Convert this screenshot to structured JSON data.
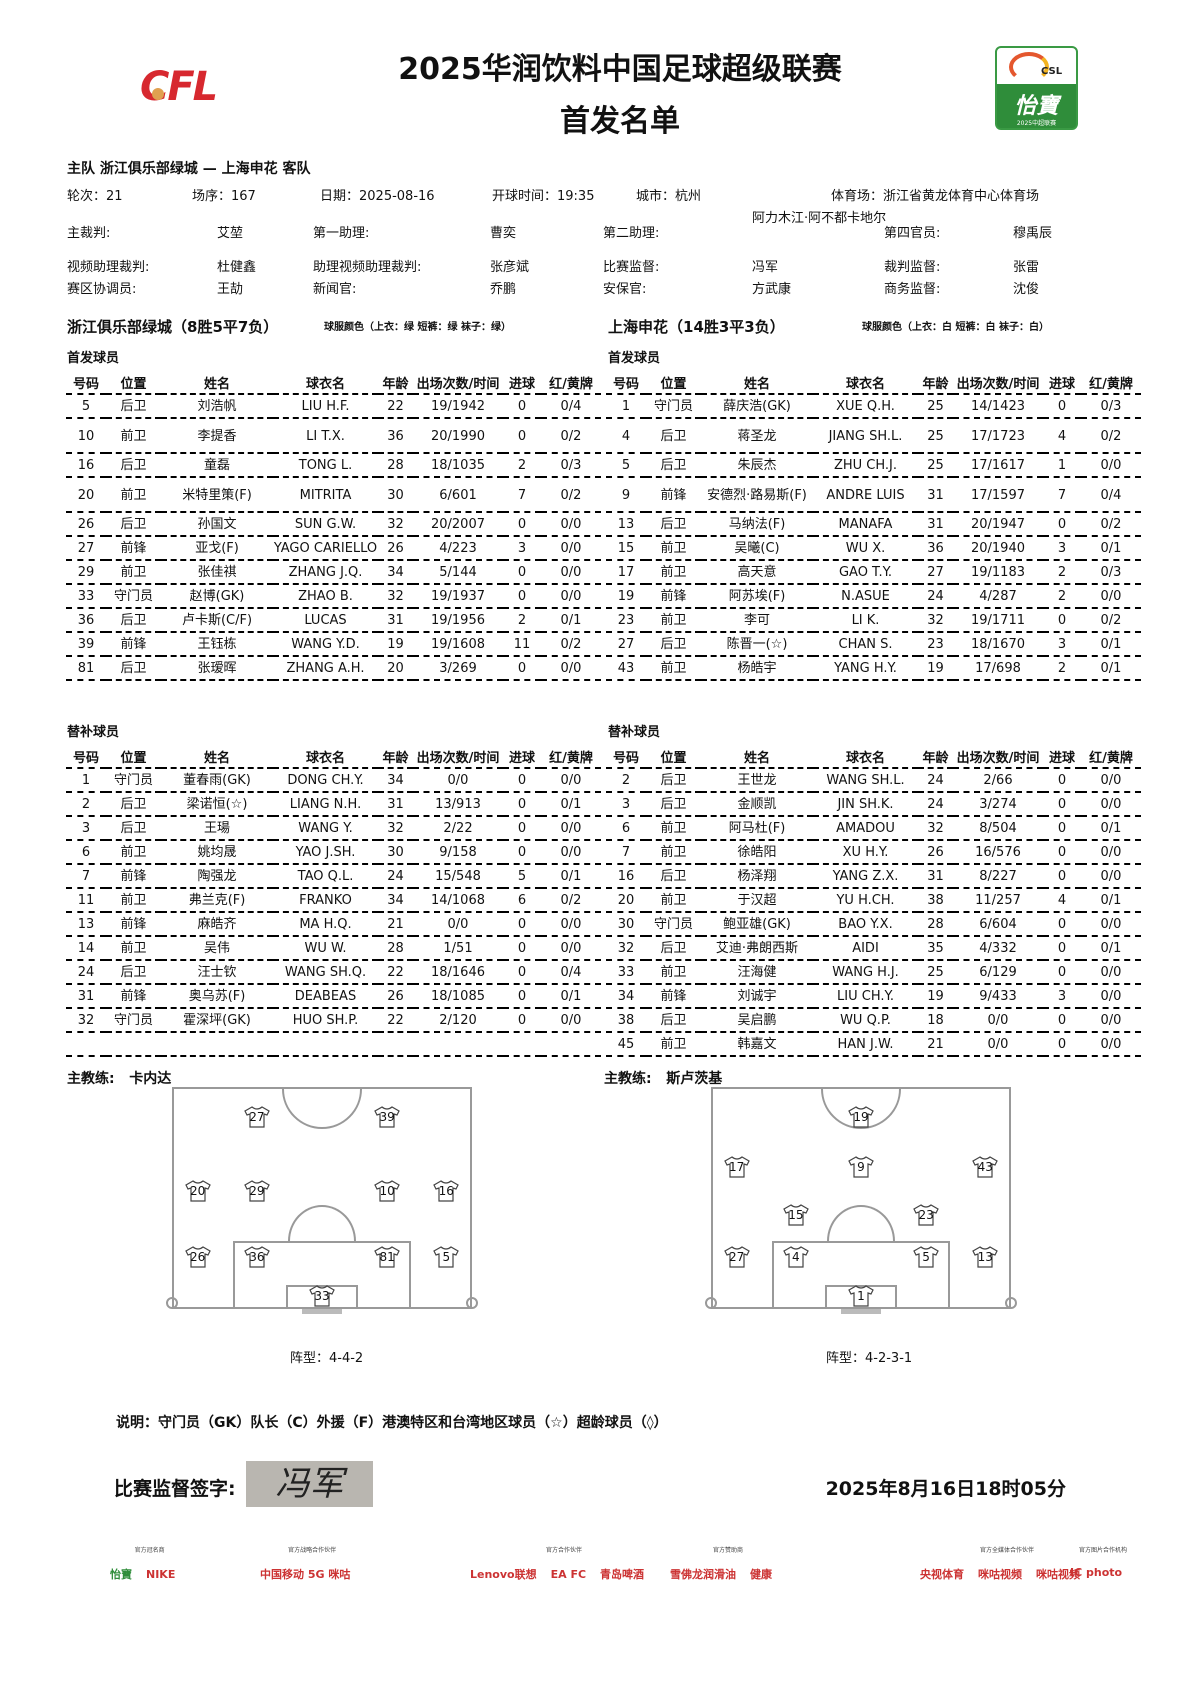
{
  "header": {
    "title": "2025华润饮料中国足球超级联赛",
    "subtitle": "首发名单",
    "left_logo_text": "CFL",
    "right_logo_text": "CSL",
    "right_logo_brand": "怡寶",
    "right_logo_year": "2025中超联赛"
  },
  "match": {
    "teams_line": "主队 浙江俱乐部绿城 — 上海申花 客队",
    "round": "轮次：21",
    "match_no": "场序：167",
    "date": "日期：2025-08-16",
    "kickoff": "开球时间：19:35",
    "city": "城市：杭州",
    "stadium": "体育场：浙江省黄龙体育中心体育场"
  },
  "officials": [
    [
      {
        "k": "主裁判:",
        "v": "艾堃"
      },
      {
        "k": "第一助理:",
        "v": "曹奕"
      },
      {
        "k": "第二助理:",
        "v": "阿力木江·阿不都卡地尔"
      },
      {
        "k": "第四官员:",
        "v": "穆禹辰"
      }
    ],
    [
      {
        "k": "视频助理裁判:",
        "v": "杜健鑫"
      },
      {
        "k": "助理视频助理裁判:",
        "v": "张彦斌"
      },
      {
        "k": "比赛监督:",
        "v": "冯军"
      },
      {
        "k": "裁判监督:",
        "v": "张雷"
      }
    ],
    [
      {
        "k": "赛区协调员:",
        "v": "王劼"
      },
      {
        "k": "新闻官:",
        "v": "乔鹏"
      },
      {
        "k": "安保官:",
        "v": "方武康"
      },
      {
        "k": "商务监督:",
        "v": "沈俊"
      }
    ]
  ],
  "columns": [
    "号码",
    "位置",
    "姓名",
    "球衣名",
    "年龄",
    "出场次数/时间",
    "进球",
    "红/黄牌"
  ],
  "home": {
    "name": "浙江俱乐部绿城（8胜5平7负）",
    "kit": "球服颜色（上衣：绿 短裤：绿 袜子：绿）",
    "starters_label": "首发球员",
    "subs_label": "替补球员",
    "starters": [
      [
        "5",
        "后卫",
        "刘浩帆",
        "LIU H.F.",
        "22",
        "19/1942",
        "0",
        "0/4"
      ],
      [
        "10",
        "前卫",
        "李提香",
        "LI T.X.",
        "36",
        "20/1990",
        "0",
        "0/2"
      ],
      [
        "16",
        "后卫",
        "童磊",
        "TONG L.",
        "28",
        "18/1035",
        "2",
        "0/3"
      ],
      [
        "20",
        "前卫",
        "米特里策(F)",
        "MITRITA",
        "30",
        "6/601",
        "7",
        "0/2"
      ],
      [
        "26",
        "后卫",
        "孙国文",
        "SUN G.W.",
        "32",
        "20/2007",
        "0",
        "0/0"
      ],
      [
        "27",
        "前锋",
        "亚戈(F)",
        "YAGO CARIELLO",
        "26",
        "4/223",
        "3",
        "0/0"
      ],
      [
        "29",
        "前卫",
        "张佳祺",
        "ZHANG J.Q.",
        "34",
        "5/144",
        "0",
        "0/0"
      ],
      [
        "33",
        "守门员",
        "赵博(GK)",
        "ZHAO B.",
        "32",
        "19/1937",
        "0",
        "0/0"
      ],
      [
        "36",
        "后卫",
        "卢卡斯(C/F)",
        "LUCAS",
        "31",
        "19/1956",
        "2",
        "0/1"
      ],
      [
        "39",
        "前锋",
        "王钰栋",
        "WANG Y.D.",
        "19",
        "19/1608",
        "11",
        "0/2"
      ],
      [
        "81",
        "后卫",
        "张瑷晖",
        "ZHANG A.H.",
        "20",
        "3/269",
        "0",
        "0/0"
      ]
    ],
    "subs": [
      [
        "1",
        "守门员",
        "董春雨(GK)",
        "DONG CH.Y.",
        "34",
        "0/0",
        "0",
        "0/0"
      ],
      [
        "2",
        "后卫",
        "梁诺恒(☆)",
        "LIANG N.H.",
        "31",
        "13/913",
        "0",
        "0/1"
      ],
      [
        "3",
        "后卫",
        "王瑒",
        "WANG Y.",
        "32",
        "2/22",
        "0",
        "0/0"
      ],
      [
        "6",
        "前卫",
        "姚均晟",
        "YAO J.SH.",
        "30",
        "9/158",
        "0",
        "0/0"
      ],
      [
        "7",
        "前锋",
        "陶强龙",
        "TAO Q.L.",
        "24",
        "15/548",
        "5",
        "0/1"
      ],
      [
        "11",
        "前卫",
        "弗兰克(F)",
        "FRANKO",
        "34",
        "14/1068",
        "6",
        "0/2"
      ],
      [
        "13",
        "前锋",
        "麻皓齐",
        "MA H.Q.",
        "21",
        "0/0",
        "0",
        "0/0"
      ],
      [
        "14",
        "前卫",
        "吴伟",
        "WU W.",
        "28",
        "1/51",
        "0",
        "0/0"
      ],
      [
        "24",
        "后卫",
        "汪士钦",
        "WANG SH.Q.",
        "22",
        "18/1646",
        "0",
        "0/4"
      ],
      [
        "31",
        "前锋",
        "奥乌苏(F)",
        "DEABEAS",
        "26",
        "18/1085",
        "0",
        "0/1"
      ],
      [
        "32",
        "守门员",
        "霍深坪(GK)",
        "HUO SH.P.",
        "22",
        "2/120",
        "0",
        "0/0"
      ],
      [
        "",
        "",
        "",
        "",
        "",
        "",
        "",
        ""
      ]
    ],
    "coach": "主教练:   卡内达",
    "formation": "阵型：4-4-2",
    "lineup_lines": [
      [
        "27",
        "39"
      ],
      [
        "20",
        "29",
        "10",
        "16"
      ],
      [
        "26",
        "36",
        "81",
        "5"
      ],
      [
        "33"
      ]
    ]
  },
  "away": {
    "name": "上海申花（14胜3平3负）",
    "kit": "球服颜色（上衣：白 短裤：白 袜子：白）",
    "starters_label": "首发球员",
    "subs_label": "替补球员",
    "starters": [
      [
        "1",
        "守门员",
        "薛庆浩(GK)",
        "XUE Q.H.",
        "25",
        "14/1423",
        "0",
        "0/3"
      ],
      [
        "4",
        "后卫",
        "蒋圣龙",
        "JIANG SH.L.",
        "25",
        "17/1723",
        "4",
        "0/2"
      ],
      [
        "5",
        "后卫",
        "朱辰杰",
        "ZHU CH.J.",
        "25",
        "17/1617",
        "1",
        "0/0"
      ],
      [
        "9",
        "前锋",
        "安德烈·路易斯(F)",
        "ANDRE LUIS",
        "31",
        "17/1597",
        "7",
        "0/4"
      ],
      [
        "13",
        "后卫",
        "马纳法(F)",
        "MANAFA",
        "31",
        "20/1947",
        "0",
        "0/2"
      ],
      [
        "15",
        "前卫",
        "吴曦(C)",
        "WU X.",
        "36",
        "20/1940",
        "3",
        "0/1"
      ],
      [
        "17",
        "前卫",
        "高天意",
        "GAO T.Y.",
        "27",
        "19/1183",
        "2",
        "0/3"
      ],
      [
        "19",
        "前锋",
        "阿苏埃(F)",
        "N.ASUE",
        "24",
        "4/287",
        "2",
        "0/0"
      ],
      [
        "23",
        "前卫",
        "李可",
        "LI K.",
        "32",
        "19/1711",
        "0",
        "0/2"
      ],
      [
        "27",
        "后卫",
        "陈晋一(☆)",
        "CHAN S.",
        "23",
        "18/1670",
        "3",
        "0/1"
      ],
      [
        "43",
        "前卫",
        "杨皓宇",
        "YANG H.Y.",
        "19",
        "17/698",
        "2",
        "0/1"
      ]
    ],
    "subs": [
      [
        "2",
        "后卫",
        "王世龙",
        "WANG SH.L.",
        "24",
        "2/66",
        "0",
        "0/0"
      ],
      [
        "3",
        "后卫",
        "金顺凯",
        "JIN SH.K.",
        "24",
        "3/274",
        "0",
        "0/0"
      ],
      [
        "6",
        "前卫",
        "阿马杜(F)",
        "AMADOU",
        "32",
        "8/504",
        "0",
        "0/1"
      ],
      [
        "7",
        "前卫",
        "徐皓阳",
        "XU H.Y.",
        "26",
        "16/576",
        "0",
        "0/0"
      ],
      [
        "16",
        "后卫",
        "杨泽翔",
        "YANG Z.X.",
        "31",
        "8/227",
        "0",
        "0/0"
      ],
      [
        "20",
        "前卫",
        "于汉超",
        "YU H.CH.",
        "38",
        "11/257",
        "4",
        "0/1"
      ],
      [
        "30",
        "守门员",
        "鲍亚雄(GK)",
        "BAO Y.X.",
        "28",
        "6/604",
        "0",
        "0/0"
      ],
      [
        "32",
        "后卫",
        "艾迪·弗朗西斯",
        "AIDI",
        "35",
        "4/332",
        "0",
        "0/1"
      ],
      [
        "33",
        "前卫",
        "汪海健",
        "WANG H.J.",
        "25",
        "6/129",
        "0",
        "0/0"
      ],
      [
        "34",
        "前锋",
        "刘诚宇",
        "LIU CH.Y.",
        "19",
        "9/433",
        "3",
        "0/0"
      ],
      [
        "38",
        "后卫",
        "吴启鹏",
        "WU Q.P.",
        "18",
        "0/0",
        "0",
        "0/0"
      ],
      [
        "45",
        "前卫",
        "韩嘉文",
        "HAN J.W.",
        "21",
        "0/0",
        "0",
        "0/0"
      ]
    ],
    "coach": "主教练:   斯卢茨基",
    "formation": "阵型：4-2-3-1",
    "lineup_lines": [
      [
        "19"
      ],
      [
        "17",
        "9",
        "43"
      ],
      [
        "15",
        "23"
      ],
      [
        "27",
        "4",
        "5",
        "13"
      ],
      [
        "1"
      ]
    ]
  },
  "footer": {
    "legend": "说明：守门员（GK）队长（C）外援（F）港澳特区和台湾地区球员（☆）超龄球员（◊）",
    "signature_label": "比赛监督签字:",
    "signature": "冯军",
    "timestamp": "2025年8月16日18时05分"
  },
  "sponsors": [
    {
      "label": "官方冠名商",
      "logos": [
        "怡寶",
        "NIKE"
      ]
    },
    {
      "label": "官方战略合作伙伴",
      "logos": [
        "中国移动 5G 咪咕"
      ]
    },
    {
      "label": "官方合作伙伴",
      "logos": [
        "Lenovo联想",
        "EA FC",
        "青岛啤酒"
      ]
    },
    {
      "label": "官方赞助商",
      "logos": [
        "雪佛龙润滑油",
        "健康"
      ]
    },
    {
      "label": "官方全媒体合作伙伴",
      "logos": [
        "央视体育",
        "咪咕视频",
        "咪咕视频"
      ]
    },
    {
      "label": "官方图片合作机构",
      "logos": [
        "IC photo"
      ]
    }
  ],
  "colors": {
    "dash": "#000000",
    "pitch_line": "#999999",
    "cfl_red": "#d7282f",
    "csl_green": "#2f8d3a"
  }
}
